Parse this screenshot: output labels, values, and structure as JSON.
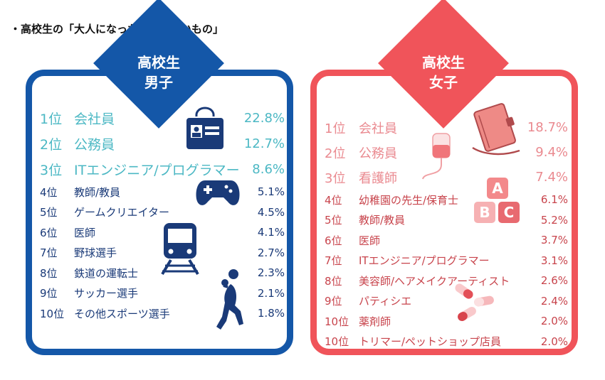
{
  "heading": "・高校生の「大人になったらなりたいもの」",
  "boys": {
    "title_line1": "高校生",
    "title_line2": "男子",
    "items": [
      {
        "rank": "1位",
        "job": "会社員",
        "pct": "22.8%"
      },
      {
        "rank": "2位",
        "job": "公務員",
        "pct": "12.7%"
      },
      {
        "rank": "3位",
        "job": "ITエンジニア/プログラマー",
        "pct": "8.6%"
      },
      {
        "rank": "4位",
        "job": "教師/教員",
        "pct": "5.1%"
      },
      {
        "rank": "5位",
        "job": "ゲームクリエイター",
        "pct": "4.5%"
      },
      {
        "rank": "6位",
        "job": "医師",
        "pct": "4.1%"
      },
      {
        "rank": "7位",
        "job": "野球選手",
        "pct": "2.7%"
      },
      {
        "rank": "8位",
        "job": "鉄道の運転士",
        "pct": "2.3%"
      },
      {
        "rank": "9位",
        "job": "サッカー選手",
        "pct": "2.1%"
      },
      {
        "rank": "10位",
        "job": "その他スポーツ選手",
        "pct": "1.8%"
      }
    ]
  },
  "girls": {
    "title_line1": "高校生",
    "title_line2": "女子",
    "items": [
      {
        "rank": "1位",
        "job": "会社員",
        "pct": "18.7%"
      },
      {
        "rank": "2位",
        "job": "公務員",
        "pct": "9.4%"
      },
      {
        "rank": "3位",
        "job": "看護師",
        "pct": "7.4%"
      },
      {
        "rank": "4位",
        "job": "幼稚園の先生/保育士",
        "pct": "6.1%"
      },
      {
        "rank": "5位",
        "job": "教師/教員",
        "pct": "5.2%"
      },
      {
        "rank": "6位",
        "job": "医師",
        "pct": "3.7%"
      },
      {
        "rank": "7位",
        "job": "ITエンジニア/プログラマー",
        "pct": "3.1%"
      },
      {
        "rank": "8位",
        "job": "美容師/ヘアメイクアーティスト",
        "pct": "2.6%"
      },
      {
        "rank": "9位",
        "job": "パティシエ",
        "pct": "2.4%"
      },
      {
        "rank": "10位",
        "job": "薬剤師",
        "pct": "2.0%"
      },
      {
        "rank": "10位",
        "job": "トリマー/ペットショップ店員",
        "pct": "2.0%"
      }
    ]
  },
  "icons": {
    "abc_a": "A",
    "abc_b": "B",
    "abc_c": "C"
  },
  "colors": {
    "boys_accent": "#1457a8",
    "boys_top_text": "#4cb8c4",
    "girls_accent": "#f0545a",
    "girls_top_text": "#ea8a90"
  }
}
